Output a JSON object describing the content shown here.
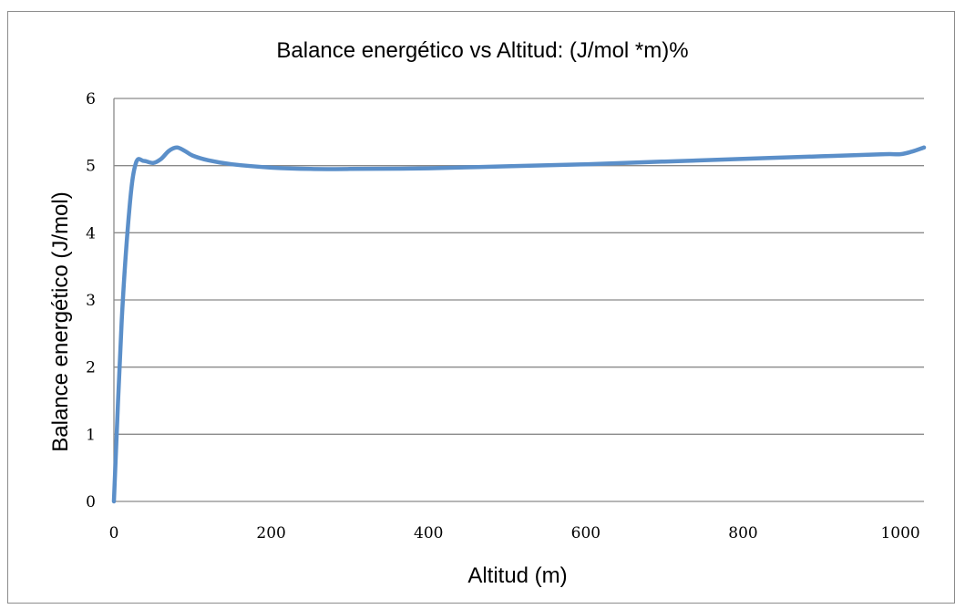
{
  "chart_data": {
    "type": "line",
    "title": "Balance energético vs Altitud: (J/mol *m)%",
    "xlabel": "Altitud (m)",
    "ylabel": "Balance energético (J/mol)",
    "xlim": [
      0,
      1030
    ],
    "ylim": [
      0,
      6
    ],
    "xticks": [
      0,
      200,
      400,
      600,
      800,
      1000
    ],
    "yticks": [
      0,
      1,
      2,
      3,
      4,
      5,
      6
    ],
    "grid": "horizontal",
    "legend": "none",
    "series": [
      {
        "color": "#5b8fc9",
        "x": [
          0,
          10,
          20,
          28,
          38,
          50,
          60,
          70,
          80,
          90,
          100,
          120,
          150,
          200,
          250,
          300,
          400,
          500,
          600,
          700,
          800,
          900,
          980,
          1000,
          1015,
          1030
        ],
        "y": [
          0,
          2.7,
          4.4,
          5.04,
          5.07,
          5.04,
          5.1,
          5.22,
          5.27,
          5.22,
          5.15,
          5.08,
          5.02,
          4.97,
          4.95,
          4.95,
          4.96,
          4.99,
          5.02,
          5.06,
          5.1,
          5.14,
          5.17,
          5.17,
          5.21,
          5.27
        ]
      }
    ]
  }
}
